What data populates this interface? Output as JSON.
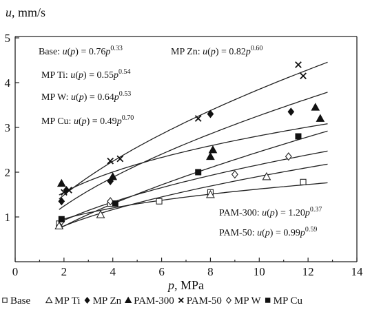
{
  "chart_data": {
    "type": "scatter",
    "title": "",
    "ylabel_parts": [
      {
        "text": "u",
        "italic": true
      },
      {
        "text": ", mm/s",
        "italic": false
      }
    ],
    "xlabel_parts": [
      {
        "text": "p",
        "italic": true
      },
      {
        "text": ", MPa",
        "italic": false
      }
    ],
    "xlim": [
      0,
      14
    ],
    "ylim": [
      0,
      5
    ],
    "xticks": [
      0,
      2,
      4,
      6,
      8,
      10,
      12,
      14
    ],
    "yticks": [
      1,
      2,
      3,
      4,
      5
    ],
    "grid": false,
    "series": [
      {
        "name": "Base",
        "marker": "square-open",
        "points": [
          [
            1.8,
            0.85
          ],
          [
            3.9,
            1.3
          ],
          [
            5.9,
            1.35
          ],
          [
            8.0,
            1.55
          ],
          [
            11.8,
            1.78
          ]
        ],
        "fit": {
          "a": 0.76,
          "b": 0.33
        }
      },
      {
        "name": "MP Ti",
        "marker": "triangle-open",
        "points": [
          [
            1.8,
            0.8
          ],
          [
            3.5,
            1.05
          ],
          [
            8.0,
            1.5
          ],
          [
            10.3,
            1.9
          ]
        ],
        "fit": {
          "a": 0.55,
          "b": 0.54
        }
      },
      {
        "name": "MP Zn",
        "marker": "diamond",
        "points": [
          [
            1.9,
            1.35
          ],
          [
            2.1,
            1.6
          ],
          [
            3.9,
            1.8
          ],
          [
            8.0,
            3.3
          ],
          [
            11.3,
            3.35
          ]
        ],
        "fit": {
          "a": 0.82,
          "b": 0.6
        }
      },
      {
        "name": "PAM-300",
        "marker": "triangle",
        "points": [
          [
            1.9,
            1.75
          ],
          [
            4.0,
            1.9
          ],
          [
            8.0,
            2.35
          ],
          [
            8.1,
            2.5
          ],
          [
            12.3,
            3.45
          ],
          [
            12.5,
            3.2
          ]
        ],
        "fit": {
          "a": 1.2,
          "b": 0.37
        }
      },
      {
        "name": "PAM-50",
        "marker": "x",
        "points": [
          [
            2.0,
            1.55
          ],
          [
            2.2,
            1.6
          ],
          [
            3.9,
            2.25
          ],
          [
            4.3,
            2.3
          ],
          [
            7.5,
            3.2
          ],
          [
            11.6,
            4.4
          ],
          [
            11.8,
            4.15
          ]
        ],
        "fit": {
          "a": 0.99,
          "b": 0.59
        }
      },
      {
        "name": "MP W",
        "marker": "diamond-open",
        "points": [
          [
            1.9,
            0.9
          ],
          [
            3.9,
            1.35
          ],
          [
            9.0,
            1.95
          ],
          [
            11.2,
            2.35
          ]
        ],
        "fit": {
          "a": 0.64,
          "b": 0.53
        }
      },
      {
        "name": "MP Cu",
        "marker": "square",
        "points": [
          [
            1.9,
            0.95
          ],
          [
            4.1,
            1.3
          ],
          [
            7.5,
            2.0
          ],
          [
            11.6,
            2.8
          ]
        ],
        "fit": {
          "a": 0.49,
          "b": 0.7
        }
      }
    ],
    "fit_range": [
      1.8,
      12.8
    ],
    "equations": [
      {
        "name": "Base",
        "text": "Base: ",
        "fn": "u(p) = 0.76p",
        "exp": "0.33"
      },
      {
        "name": "MP Zn",
        "text": "MP Zn: ",
        "fn": "u(p) = 0.82p",
        "exp": "0.60"
      },
      {
        "name": "MP Ti",
        "text": "MP Ti: ",
        "fn": "u(p) = 0.55p",
        "exp": "0.54"
      },
      {
        "name": "MP W",
        "text": "MP W: ",
        "fn": "u(p) = 0.64p",
        "exp": "0.53"
      },
      {
        "name": "MP Cu",
        "text": "MP Cu: ",
        "fn": "u(p) = 0.49p",
        "exp": "0.70"
      },
      {
        "name": "PAM-300",
        "text": "PAM-300: ",
        "fn": "u(p) = 1.20p",
        "exp": "0.37"
      },
      {
        "name": "PAM-50",
        "text": "PAM-50: ",
        "fn": "u(p) = 0.99p",
        "exp": "0.59"
      }
    ],
    "legend_position": "bottom",
    "legend": [
      {
        "name": "Base",
        "marker": "square-open"
      },
      {
        "name": "MP Ti",
        "marker": "triangle-open"
      },
      {
        "name": "MP Zn",
        "marker": "diamond"
      },
      {
        "name": "PAM-300",
        "marker": "triangle"
      },
      {
        "name": "PAM-50",
        "marker": "x"
      },
      {
        "name": "MP W",
        "marker": "diamond-open"
      },
      {
        "name": "MP Cu",
        "marker": "square"
      }
    ]
  }
}
